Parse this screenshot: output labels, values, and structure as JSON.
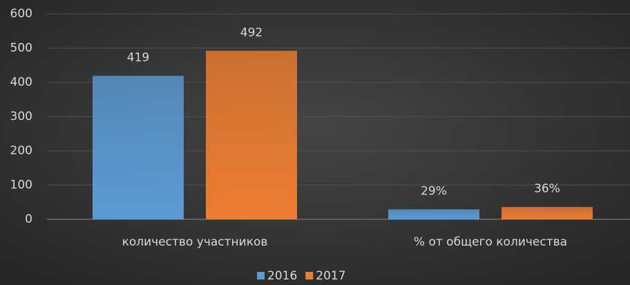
{
  "chart_data": {
    "type": "bar",
    "categories": [
      "количество участников",
      "% от общего количества"
    ],
    "series": [
      {
        "name": "2016",
        "color": "#5b9bd5",
        "values": [
          419,
          29
        ],
        "value_labels": [
          "419",
          "29%"
        ]
      },
      {
        "name": "2017",
        "color": "#ed7d31",
        "values": [
          492,
          36
        ],
        "value_labels": [
          "492",
          "36%"
        ]
      }
    ],
    "ylim": [
      0,
      600
    ],
    "yticks": [
      0,
      100,
      200,
      300,
      400,
      500,
      600
    ],
    "grid": true,
    "legend": "bottom"
  }
}
